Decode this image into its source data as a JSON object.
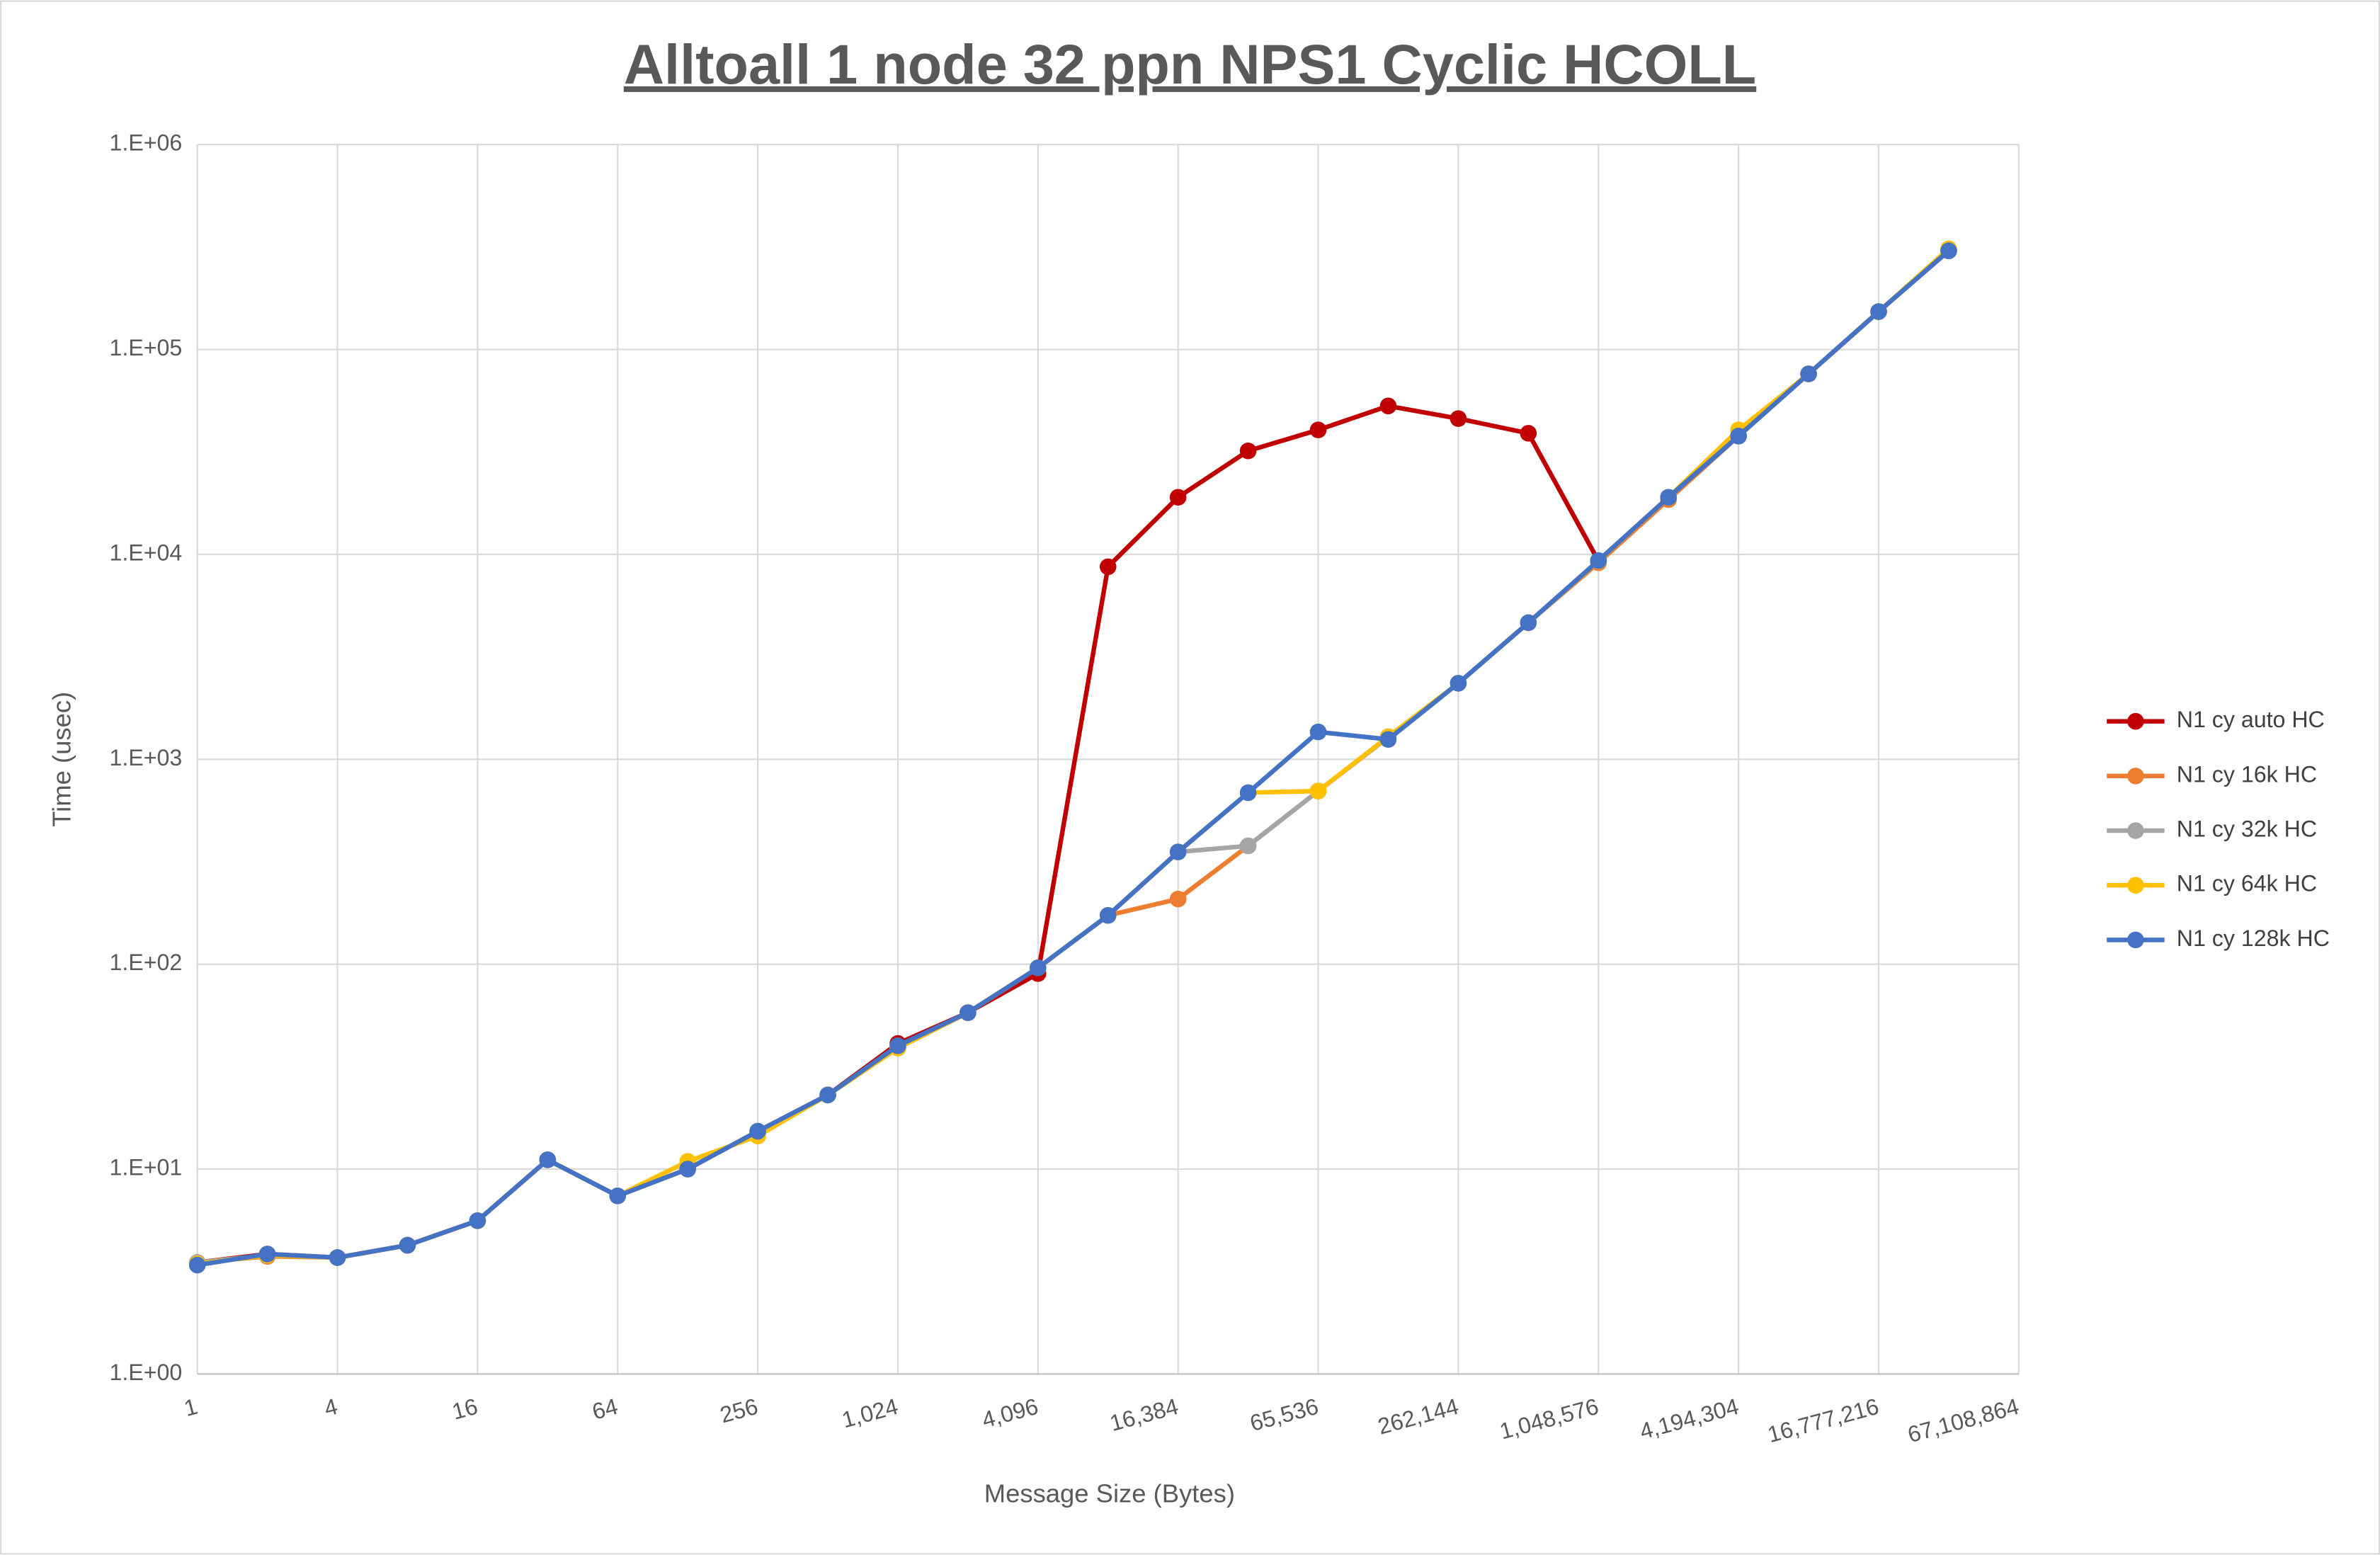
{
  "chart_data": {
    "type": "line",
    "title": "Alltoall 1 node 32 ppn NPS1 Cyclic HCOLL",
    "x_label": "Message Size (Bytes)",
    "y_label": "Time (usec)",
    "log_x": true,
    "log_y": true,
    "grid": true,
    "legend": "right",
    "x": [
      1,
      2,
      4,
      8,
      16,
      32,
      64,
      128,
      256,
      512,
      1024,
      2048,
      4096,
      8192,
      16384,
      32768,
      65536,
      131072,
      262144,
      524288,
      1048576,
      2097152,
      4194304,
      8388608,
      16777216,
      33554432
    ],
    "xlim": [
      1,
      67108864
    ],
    "xticks": [
      1,
      4,
      16,
      64,
      256,
      {
        "value": 1024,
        "label": "1,024"
      },
      {
        "value": 4096,
        "label": "4,096"
      },
      {
        "value": 16384,
        "label": "16,384"
      },
      {
        "value": 65536,
        "label": "65,536"
      },
      {
        "value": 262144,
        "label": "262,144"
      },
      {
        "value": 1048576,
        "label": "1,048,576"
      },
      {
        "value": 4194304,
        "label": "4,194,304"
      },
      {
        "value": 16777216,
        "label": "16,777,216"
      },
      {
        "value": 67108864,
        "label": "67,108,864"
      }
    ],
    "ylim": [
      1,
      1000000
    ],
    "yticks": [
      {
        "value": 1,
        "label": "1.E+00"
      },
      {
        "value": 10,
        "label": "1.E+01"
      },
      {
        "value": 100,
        "label": "1.E+02"
      },
      {
        "value": 1000,
        "label": "1.E+03"
      },
      {
        "value": 10000,
        "label": "1.E+04"
      },
      {
        "value": 100000,
        "label": "1.E+05"
      },
      {
        "value": 1000000,
        "label": "1.E+06"
      }
    ],
    "series": [
      {
        "name": "N1 cy auto HC",
        "color": "#C00000",
        "values": [
          3.5,
          3.85,
          3.7,
          4.25,
          5.6,
          11.1,
          7.4,
          10,
          15.3,
          23,
          41,
          58,
          90,
          8700,
          19000,
          32000,
          40500,
          53000,
          46000,
          39000,
          9300,
          19000,
          37800,
          76000,
          153000,
          303000
        ]
      },
      {
        "name": "N1 cy 16k HC",
        "color": "#ED7D31",
        "values": [
          3.5,
          3.75,
          3.7,
          4.25,
          5.6,
          11.1,
          7.4,
          10,
          15.3,
          23,
          39,
          58,
          96,
          173,
          208,
          378,
          700,
          1280,
          2350,
          4640,
          9100,
          18500,
          37800,
          76000,
          153000,
          303000
        ]
      },
      {
        "name": "N1 cy 32k HC",
        "color": "#A5A5A5",
        "values": [
          3.5,
          3.8,
          3.7,
          4.25,
          5.6,
          11.1,
          7.4,
          10,
          15.3,
          23,
          39,
          58,
          96,
          173,
          353,
          378,
          700,
          1280,
          2350,
          4640,
          9300,
          19000,
          37800,
          76000,
          153000,
          303000
        ]
      },
      {
        "name": "N1 cy 64k HC",
        "color": "#FFC000",
        "values": [
          3.45,
          3.8,
          3.7,
          4.25,
          5.6,
          11.1,
          7.4,
          10.9,
          14.5,
          23,
          39,
          58,
          96,
          173,
          353,
          687,
          700,
          1290,
          2350,
          4640,
          9300,
          19000,
          40500,
          76000,
          153000,
          310000
        ]
      },
      {
        "name": "N1 cy 128k HC",
        "color": "#4472C4",
        "values": [
          3.4,
          3.85,
          3.7,
          4.25,
          5.6,
          11.1,
          7.4,
          10,
          15.3,
          23,
          40,
          58,
          96,
          173,
          353,
          687,
          1360,
          1250,
          2350,
          4640,
          9330,
          19000,
          37800,
          76000,
          153000,
          303000
        ]
      }
    ]
  }
}
